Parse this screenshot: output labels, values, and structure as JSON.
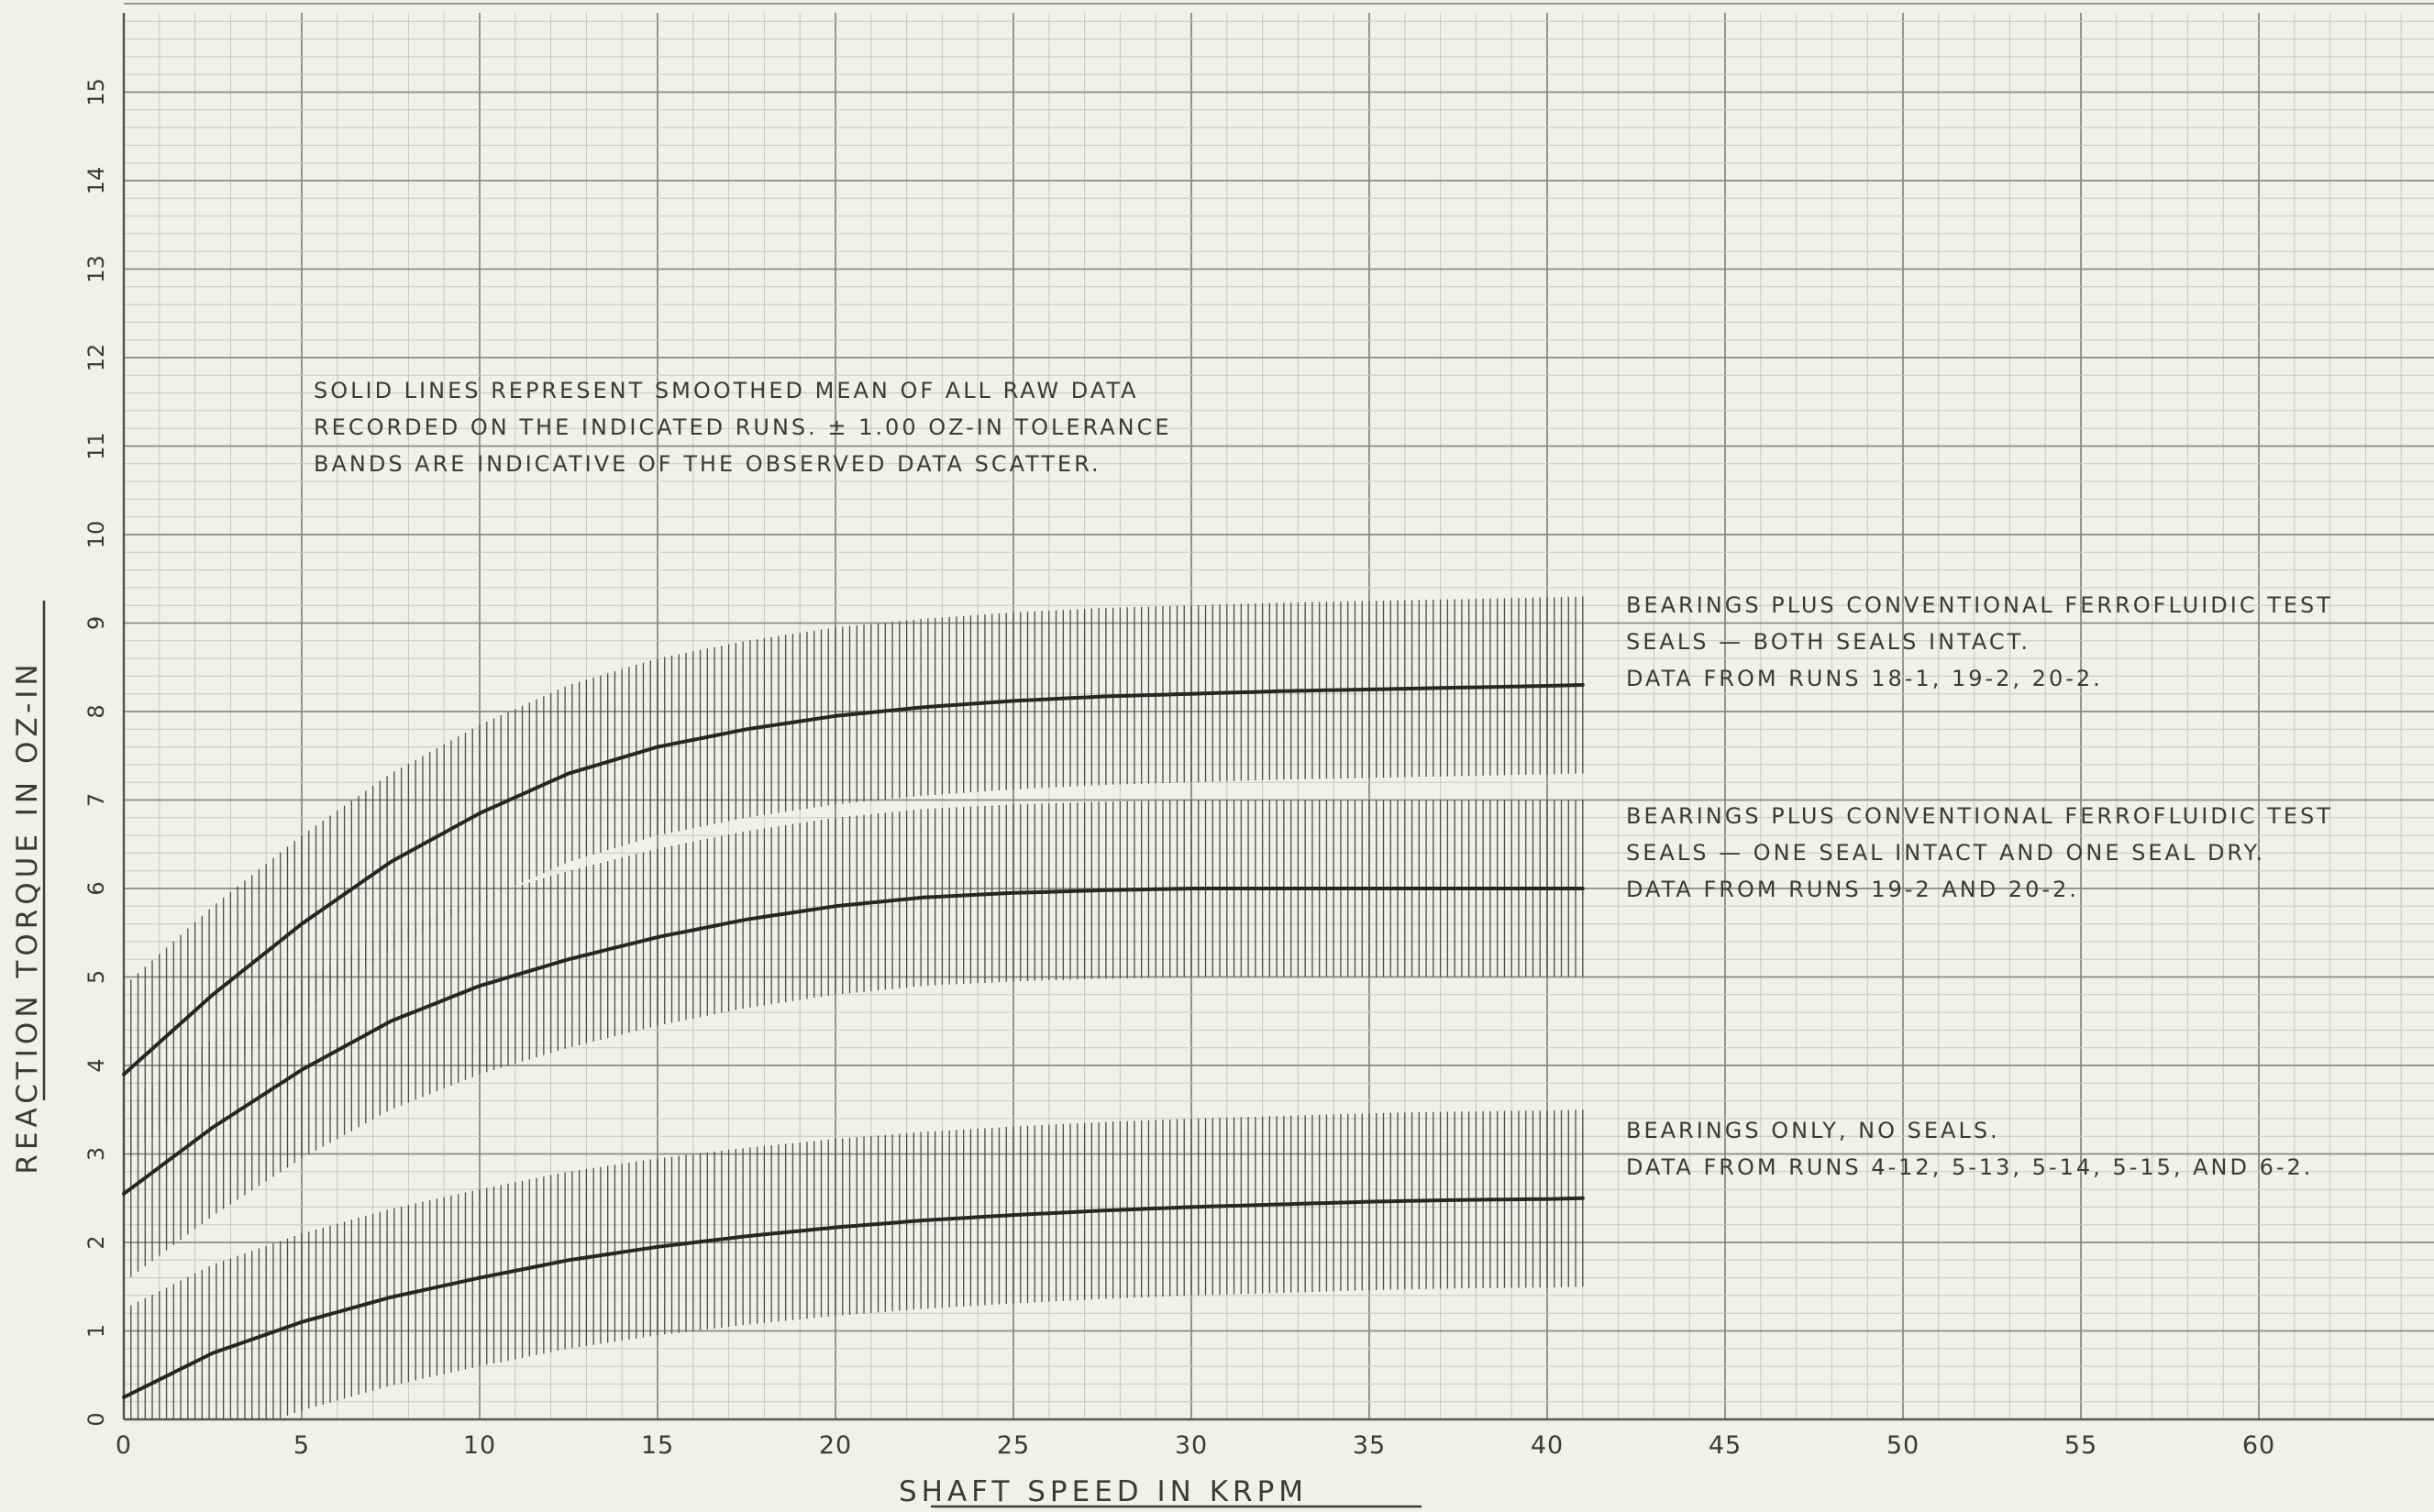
{
  "chart_data": {
    "type": "line",
    "title": "",
    "xlabel": "SHAFT SPEED IN KRPM",
    "ylabel": "REACTION TORQUE IN OZ-IN",
    "xlim": [
      0,
      65
    ],
    "ylim": [
      0,
      16
    ],
    "x_ticks": [
      "0",
      "5",
      "10",
      "15",
      "20",
      "25",
      "30",
      "35",
      "40",
      "45",
      "50",
      "55",
      "60"
    ],
    "y_ticks": [
      "0",
      "1",
      "2",
      "3",
      "4",
      "5",
      "6",
      "7",
      "8",
      "9",
      "10",
      "11",
      "12",
      "13",
      "14",
      "15"
    ],
    "grid": true,
    "tolerance_band": 1.0,
    "x": [
      0,
      2.5,
      5,
      7.5,
      10,
      12.5,
      15,
      17.5,
      20,
      22.5,
      25,
      27.5,
      30,
      32.5,
      35,
      37.5,
      40,
      41
    ],
    "series": [
      {
        "name": "BEARINGS PLUS CONVENTIONAL FERROFLUIDIC TEST SEALS — BOTH SEALS INTACT.",
        "values": [
          3.9,
          4.8,
          5.6,
          6.3,
          6.85,
          7.3,
          7.6,
          7.8,
          7.95,
          8.05,
          8.12,
          8.17,
          8.2,
          8.23,
          8.25,
          8.27,
          8.29,
          8.3
        ]
      },
      {
        "name": "BEARINGS PLUS CONVENTIONAL FERROFLUIDIC TEST SEALS — ONE SEAL INTACT AND ONE SEAL DRY.",
        "values": [
          2.55,
          3.3,
          3.95,
          4.5,
          4.9,
          5.2,
          5.45,
          5.65,
          5.8,
          5.9,
          5.95,
          5.98,
          6.0,
          6.0,
          6.0,
          6.0,
          6.0,
          6.0
        ]
      },
      {
        "name": "BEARINGS ONLY, NO SEALS.",
        "values": [
          0.25,
          0.75,
          1.1,
          1.38,
          1.6,
          1.8,
          1.95,
          2.07,
          2.17,
          2.25,
          2.31,
          2.36,
          2.4,
          2.43,
          2.46,
          2.48,
          2.49,
          2.5
        ]
      }
    ],
    "annotations": [
      {
        "lines": [
          "SOLID LINES REPRESENT SMOOTHED MEAN OF ALL RAW DATA",
          "RECORDED ON THE INDICATED RUNS. ± 1.00 OZ-IN TOLERANCE",
          "BANDS ARE INDICATIVE OF THE OBSERVED DATA SCATTER."
        ]
      },
      {
        "lines": [
          "BEARINGS PLUS CONVENTIONAL FERROFLUIDIC TEST",
          "SEALS — BOTH SEALS INTACT.",
          "DATA FROM RUNS 18-1, 19-2, 20-2."
        ]
      },
      {
        "lines": [
          "BEARINGS PLUS CONVENTIONAL FERROFLUIDIC TEST",
          "SEALS — ONE SEAL INTACT AND ONE SEAL DRY.",
          "DATA FROM RUNS 19-2 AND 20-2."
        ]
      },
      {
        "lines": [
          "BEARINGS ONLY, NO SEALS.",
          "DATA FROM RUNS 4-12, 5-13, 5-14, 5-15, AND 6-2."
        ]
      }
    ]
  }
}
